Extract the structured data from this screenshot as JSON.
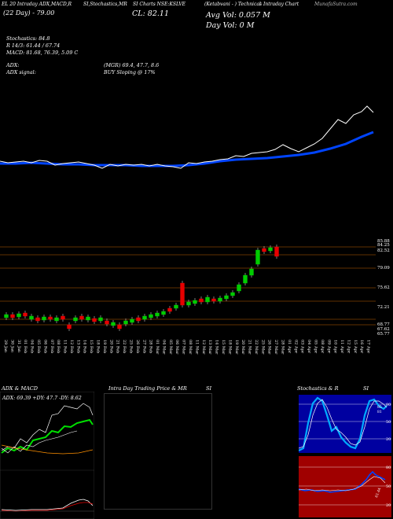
{
  "header": {
    "tab_1": "EL 20 Intraday ADX,MACD,R",
    "tab_2": "SI,Stochastics,MR",
    "tab_3": "SI Charts NSE:KSLVE",
    "tab_4": "(Ketabvani - ) Technical",
    "tab_5": "s Intraday Chart",
    "watermark": "MunafaSutra.com",
    "today": "(22 Day) - 79.00",
    "close": "CL: 82.11",
    "avg_vol": "Avg Vol: 0.057 M",
    "day_vol": "Day Vol: 0   M"
  },
  "indicators": {
    "stochastics": "Stochastics: 84.8",
    "r": "R 14/3: 61.44 / 67.74",
    "macd": "MACD: 81.68, 76.39, 5.09 C",
    "adx": "ADX:",
    "adx_value": "(MGR) 69.4, 47.7, 8.6",
    "adx_signal": "ADX  signal:",
    "buy_signal": "BUY Sloping @ 17%"
  },
  "price_axis": {
    "labels": [
      "85.88",
      "84.25",
      "82.52",
      "79.09",
      "75.62",
      "72.21",
      "68.77",
      "67.62",
      "65.77"
    ]
  },
  "date_axis": {
    "labels": [
      "29 Jan",
      "30 Jan",
      "31 Jan",
      "01 Feb",
      "04 Feb",
      "05 Feb",
      "06 Feb",
      "07 Feb",
      "08 Feb",
      "11 Feb",
      "12 Feb",
      "13 Feb",
      "14 Feb",
      "15 Feb",
      "18 Feb",
      "19 Feb",
      "20 Feb",
      "21 Feb",
      "22 Feb",
      "25 Feb",
      "26 Feb",
      "27 Feb",
      "28 Feb",
      "01 Mar",
      "04 Mar",
      "05 Mar",
      "06 Mar",
      "07 Mar",
      "08 Mar",
      "11 Mar",
      "12 Mar",
      "13 Mar",
      "14 Mar",
      "15 Mar",
      "18 Mar",
      "19 Mar",
      "20 Mar",
      "21 Mar",
      "22 Mar",
      "25 Mar",
      "26 Mar",
      "27 Mar",
      "28 Mar",
      "01 Apr",
      "02 Apr",
      "03 Apr",
      "04 Apr",
      "05 Apr",
      "08 Apr",
      "09 Apr",
      "10 Apr",
      "11 Apr",
      "12 Apr",
      "15 Apr",
      "16 Apr",
      "17 Apr"
    ]
  },
  "panels": {
    "adx_title": "ADX  & MACD",
    "adx_readout": "ADX: 69.39 +DY: 47.7 -DY: 8.62",
    "intraday_title": "Intra  Day Trading Price  & MR",
    "intraday_title_2": "SI",
    "stoch_title": "Stochastics & R",
    "stoch_title_2": "SI",
    "stoch_ticks": [
      "80",
      "50",
      "20"
    ],
    "rsi_ticks": [
      "80",
      "50",
      "20"
    ],
    "stoch_labels": [
      "85",
      "81"
    ],
    "rsi_label": "61.44"
  },
  "colors": {
    "background": "#000000",
    "bullish": "#00cc00",
    "bearish": "#e60000",
    "ema": "#0044ff",
    "price_line": "#ffffff",
    "level_line": "#c06000"
  }
}
